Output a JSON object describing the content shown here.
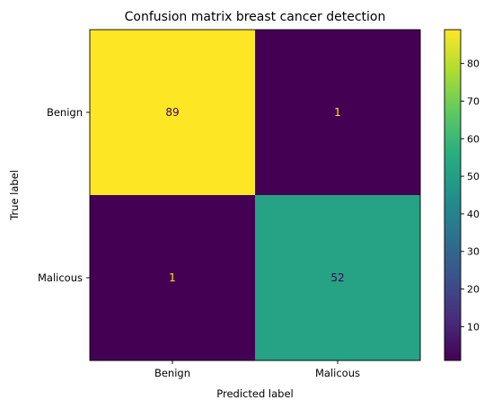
{
  "chart_data": {
    "type": "heatmap",
    "title": "Confusion matrix breast cancer detection",
    "xlabel": "Predicted label",
    "ylabel": "True label",
    "x_categories": [
      "Benign",
      "Malicous"
    ],
    "y_categories": [
      "Benign",
      "Malicous"
    ],
    "matrix": [
      [
        89,
        1
      ],
      [
        1,
        52
      ]
    ],
    "colormap": "viridis",
    "colorbar": {
      "range": [
        1,
        89
      ],
      "ticks": [
        10,
        20,
        30,
        40,
        50,
        60,
        70,
        80
      ]
    },
    "grid": false,
    "text_colors": {
      "on_dark": "#fde725",
      "on_light": "#440154"
    }
  }
}
